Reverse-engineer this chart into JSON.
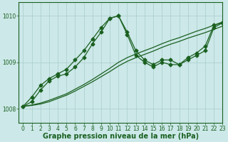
{
  "title": "Graphe pression niveau de la mer (hPa)",
  "background_color": "#cce8e8",
  "grid_color": "#aacccc",
  "line_color": "#1a6020",
  "xlim": [
    -0.5,
    23
  ],
  "ylim": [
    1007.7,
    1010.3
  ],
  "yticks": [
    1008,
    1009,
    1010
  ],
  "xticks": [
    0,
    1,
    2,
    3,
    4,
    5,
    6,
    7,
    8,
    9,
    10,
    11,
    12,
    13,
    14,
    15,
    16,
    17,
    18,
    19,
    20,
    21,
    22,
    23
  ],
  "series_markers": [
    [
      1008.05,
      1008.25,
      1008.5,
      1008.65,
      1008.75,
      1008.85,
      1009.05,
      1009.25,
      1009.5,
      1009.75,
      1009.95,
      1010.0,
      1009.65,
      1009.25,
      1009.05,
      1008.95,
      1009.05,
      1009.05,
      1008.95,
      1009.1,
      1009.2,
      1009.35,
      1009.8,
      1009.85
    ],
    [
      1008.05,
      1008.15,
      1008.4,
      1008.6,
      1008.7,
      1008.75,
      1008.9,
      1009.1,
      1009.4,
      1009.65,
      1009.95,
      1010.0,
      1009.6,
      1009.15,
      1009.0,
      1008.9,
      1009.0,
      1008.95,
      1008.95,
      1009.05,
      1009.15,
      1009.25,
      1009.75,
      1009.85
    ]
  ],
  "series_lines": [
    [
      1008.05,
      1008.08,
      1008.12,
      1008.18,
      1008.25,
      1008.32,
      1008.42,
      1008.52,
      1008.63,
      1008.75,
      1008.87,
      1009.0,
      1009.1,
      1009.18,
      1009.25,
      1009.32,
      1009.4,
      1009.47,
      1009.53,
      1009.6,
      1009.67,
      1009.73,
      1009.8,
      1009.87
    ],
    [
      1008.05,
      1008.07,
      1008.1,
      1008.15,
      1008.22,
      1008.29,
      1008.38,
      1008.48,
      1008.58,
      1008.69,
      1008.8,
      1008.92,
      1009.02,
      1009.1,
      1009.17,
      1009.24,
      1009.32,
      1009.39,
      1009.45,
      1009.52,
      1009.58,
      1009.64,
      1009.71,
      1009.78
    ]
  ],
  "marker_style": "D",
  "marker_size": 2.5,
  "line_width": 0.9,
  "title_fontsize": 7,
  "tick_fontsize": 5.5
}
